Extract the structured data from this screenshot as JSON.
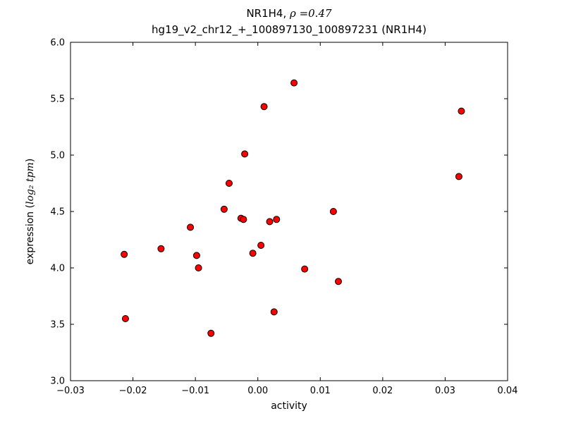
{
  "chart_data": {
    "type": "scatter",
    "title": {
      "line1_prefix": "NR1H4, ",
      "line1_math": "ρ =0.47",
      "line2": "hg19_v2_chr12_+_100897130_100897231 (NR1H4)"
    },
    "xlabel": "activity",
    "ylabel": {
      "prefix": "expression (",
      "math": "log₂ tpm",
      "suffix": ")"
    },
    "xlim": [
      -0.03,
      0.04
    ],
    "ylim": [
      3.0,
      6.0
    ],
    "xtick_values": [
      -0.03,
      -0.02,
      -0.01,
      0.0,
      0.01,
      0.02,
      0.03,
      0.04
    ],
    "xtick_labels": [
      "−0.03",
      "−0.02",
      "−0.01",
      "0.00",
      "0.01",
      "0.02",
      "0.03",
      "0.04"
    ],
    "ytick_values": [
      3.0,
      3.5,
      4.0,
      4.5,
      5.0,
      5.5,
      6.0
    ],
    "ytick_labels": [
      "3.0",
      "3.5",
      "4.0",
      "4.5",
      "5.0",
      "5.5",
      "6.0"
    ],
    "grid": false,
    "legend": null,
    "marker": {
      "shape": "circle",
      "fill_color": "#ff0000",
      "edge_color": "#000000",
      "radius": 4.5
    },
    "points": [
      [
        -0.0214,
        4.12
      ],
      [
        -0.0212,
        3.55
      ],
      [
        -0.0155,
        4.17
      ],
      [
        -0.0108,
        4.36
      ],
      [
        -0.0098,
        4.11
      ],
      [
        -0.0095,
        4.0
      ],
      [
        -0.0075,
        3.42
      ],
      [
        -0.0054,
        4.52
      ],
      [
        -0.0046,
        4.75
      ],
      [
        -0.0027,
        4.44
      ],
      [
        -0.0023,
        4.43
      ],
      [
        -0.0021,
        5.01
      ],
      [
        -0.0008,
        4.13
      ],
      [
        0.0005,
        4.2
      ],
      [
        0.001,
        5.43
      ],
      [
        0.0019,
        4.41
      ],
      [
        0.0026,
        3.61
      ],
      [
        0.003,
        4.43
      ],
      [
        0.0058,
        5.64
      ],
      [
        0.0075,
        3.99
      ],
      [
        0.0121,
        4.5
      ],
      [
        0.0129,
        3.88
      ],
      [
        0.0322,
        4.81
      ],
      [
        0.0326,
        5.39
      ]
    ]
  }
}
